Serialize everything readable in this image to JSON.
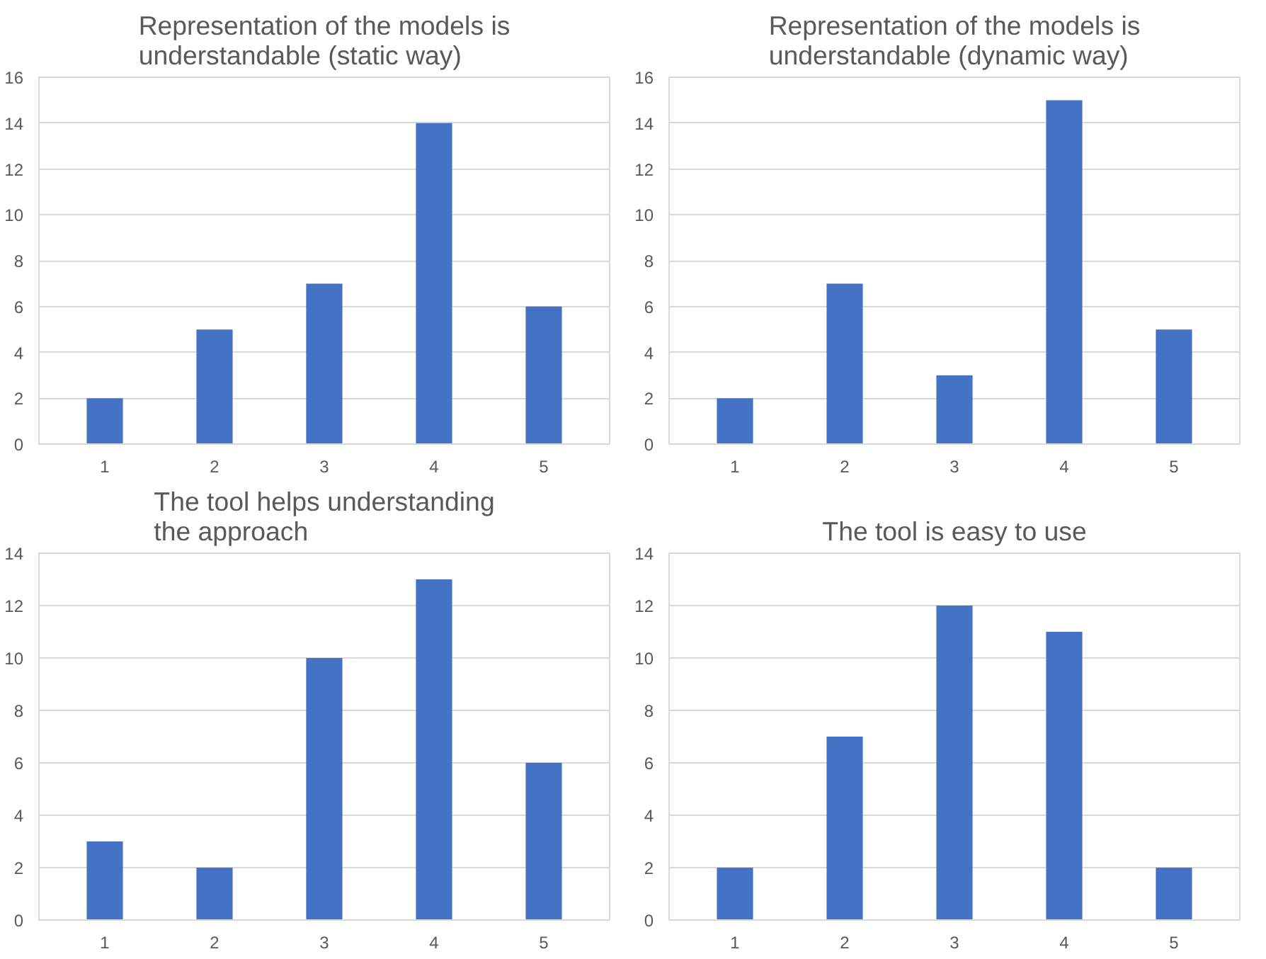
{
  "chart_data": [
    {
      "type": "bar",
      "title": "Representation of the models is understandable (static way)",
      "categories": [
        "1",
        "2",
        "3",
        "4",
        "5"
      ],
      "values": [
        2,
        5,
        7,
        14,
        6
      ],
      "color": "#4472c4",
      "ylim": [
        0,
        16
      ],
      "yticks": [
        0,
        2,
        4,
        6,
        8,
        10,
        12,
        14,
        16
      ],
      "grid": "y"
    },
    {
      "type": "bar",
      "title": "Representation of the models is understandable (dynamic way)",
      "categories": [
        "1",
        "2",
        "3",
        "4",
        "5"
      ],
      "values": [
        2,
        7,
        3,
        15,
        5
      ],
      "color": "#4472c4",
      "ylim": [
        0,
        16
      ],
      "yticks": [
        0,
        2,
        4,
        6,
        8,
        10,
        12,
        14,
        16
      ],
      "grid": "y"
    },
    {
      "type": "bar",
      "title": "The tool helps understanding the approach",
      "categories": [
        "1",
        "2",
        "3",
        "4",
        "5"
      ],
      "values": [
        3,
        2,
        10,
        13,
        6
      ],
      "color": "#4472c4",
      "ylim": [
        0,
        14
      ],
      "yticks": [
        0,
        2,
        4,
        6,
        8,
        10,
        12,
        14
      ],
      "grid": "y"
    },
    {
      "type": "bar",
      "title": "The tool is easy to use",
      "categories": [
        "1",
        "2",
        "3",
        "4",
        "5"
      ],
      "values": [
        2,
        7,
        12,
        11,
        2
      ],
      "color": "#4472c4",
      "ylim": [
        0,
        14
      ],
      "yticks": [
        0,
        2,
        4,
        6,
        8,
        10,
        12,
        14
      ],
      "grid": "y"
    }
  ]
}
